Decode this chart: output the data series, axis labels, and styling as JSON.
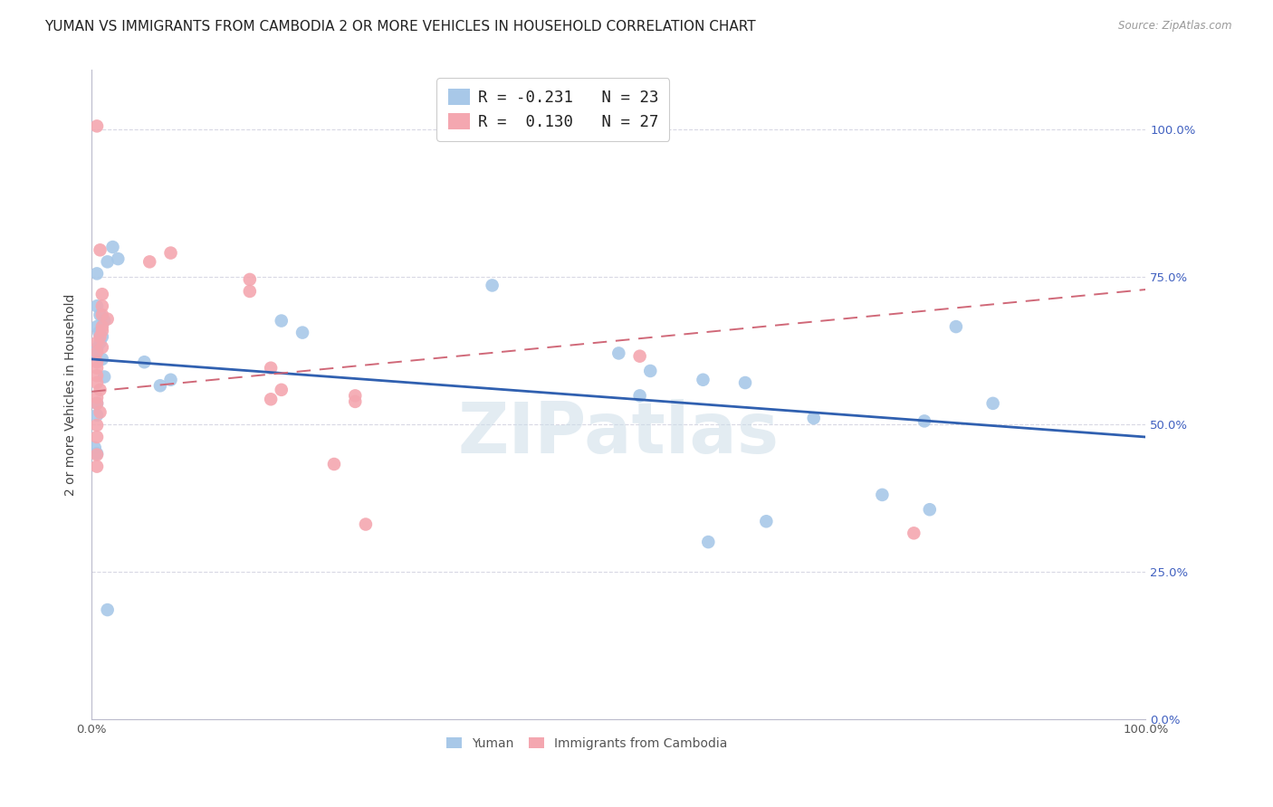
{
  "title": "YUMAN VS IMMIGRANTS FROM CAMBODIA 2 OR MORE VEHICLES IN HOUSEHOLD CORRELATION CHART",
  "source": "Source: ZipAtlas.com",
  "ylabel": "2 or more Vehicles in Household",
  "xlim": [
    0.0,
    1.0
  ],
  "ylim": [
    0.0,
    1.1
  ],
  "yticks": [
    0.0,
    0.25,
    0.5,
    0.75,
    1.0
  ],
  "ytick_labels_right": [
    "0.0%",
    "25.0%",
    "50.0%",
    "75.0%",
    "100.0%"
  ],
  "xticks": [
    0.0,
    0.1,
    0.2,
    0.3,
    0.4,
    0.5,
    0.6,
    0.7,
    0.8,
    0.9,
    1.0
  ],
  "xtick_labels": [
    "0.0%",
    "",
    "",
    "",
    "",
    "",
    "",
    "",
    "",
    "",
    "100.0%"
  ],
  "blue_scatter": [
    [
      0.02,
      0.8
    ],
    [
      0.015,
      0.775
    ],
    [
      0.005,
      0.755
    ],
    [
      0.025,
      0.78
    ],
    [
      0.005,
      0.7
    ],
    [
      0.008,
      0.685
    ],
    [
      0.012,
      0.675
    ],
    [
      0.005,
      0.665
    ],
    [
      0.007,
      0.655
    ],
    [
      0.01,
      0.648
    ],
    [
      0.008,
      0.638
    ],
    [
      0.005,
      0.628
    ],
    [
      0.003,
      0.62
    ],
    [
      0.01,
      0.61
    ],
    [
      0.05,
      0.605
    ],
    [
      0.012,
      0.58
    ],
    [
      0.075,
      0.575
    ],
    [
      0.065,
      0.565
    ],
    [
      0.005,
      0.535
    ],
    [
      0.005,
      0.515
    ],
    [
      0.003,
      0.46
    ],
    [
      0.005,
      0.45
    ],
    [
      0.015,
      0.185
    ]
  ],
  "blue_scatter_far": [
    [
      0.38,
      0.735
    ],
    [
      0.18,
      0.675
    ],
    [
      0.2,
      0.655
    ],
    [
      0.5,
      0.62
    ],
    [
      0.53,
      0.59
    ],
    [
      0.58,
      0.575
    ],
    [
      0.62,
      0.57
    ],
    [
      0.52,
      0.548
    ],
    [
      0.82,
      0.665
    ],
    [
      0.685,
      0.51
    ],
    [
      0.79,
      0.505
    ],
    [
      0.75,
      0.38
    ],
    [
      0.64,
      0.335
    ],
    [
      0.585,
      0.3
    ],
    [
      0.795,
      0.355
    ],
    [
      0.855,
      0.535
    ]
  ],
  "pink_scatter": [
    [
      0.005,
      1.005
    ],
    [
      0.008,
      0.795
    ],
    [
      0.075,
      0.79
    ],
    [
      0.055,
      0.775
    ],
    [
      0.01,
      0.72
    ],
    [
      0.01,
      0.7
    ],
    [
      0.01,
      0.685
    ],
    [
      0.015,
      0.678
    ],
    [
      0.01,
      0.665
    ],
    [
      0.01,
      0.658
    ],
    [
      0.008,
      0.648
    ],
    [
      0.005,
      0.638
    ],
    [
      0.01,
      0.63
    ],
    [
      0.005,
      0.622
    ],
    [
      0.005,
      0.605
    ],
    [
      0.005,
      0.595
    ],
    [
      0.005,
      0.582
    ],
    [
      0.005,
      0.57
    ],
    [
      0.008,
      0.558
    ],
    [
      0.005,
      0.545
    ],
    [
      0.005,
      0.535
    ],
    [
      0.008,
      0.52
    ],
    [
      0.005,
      0.498
    ],
    [
      0.005,
      0.478
    ],
    [
      0.005,
      0.448
    ],
    [
      0.005,
      0.428
    ],
    [
      0.15,
      0.745
    ],
    [
      0.15,
      0.725
    ]
  ],
  "pink_scatter_far": [
    [
      0.17,
      0.595
    ],
    [
      0.18,
      0.558
    ],
    [
      0.17,
      0.542
    ],
    [
      0.25,
      0.548
    ],
    [
      0.25,
      0.538
    ],
    [
      0.23,
      0.432
    ],
    [
      0.52,
      0.615
    ],
    [
      0.26,
      0.33
    ],
    [
      0.78,
      0.315
    ]
  ],
  "blue_line_x": [
    0.0,
    1.0
  ],
  "blue_line_y": [
    0.61,
    0.478
  ],
  "pink_line_x": [
    0.0,
    1.0
  ],
  "pink_line_y": [
    0.555,
    0.728
  ],
  "blue_color": "#a8c8e8",
  "pink_color": "#f4a7b0",
  "blue_line_color": "#3060b0",
  "pink_line_color": "#d06878",
  "watermark": "ZIPatlas",
  "watermark_color": "#ccdde8",
  "background_color": "#ffffff",
  "grid_color": "#d8d8e4",
  "title_fontsize": 11,
  "axis_label_fontsize": 10,
  "tick_fontsize": 9.5,
  "right_tick_color": "#4060c0",
  "legend_r_blue": "R = -0.231",
  "legend_n_blue": "N = 23",
  "legend_r_pink": "R =  0.130",
  "legend_n_pink": "N = 27"
}
